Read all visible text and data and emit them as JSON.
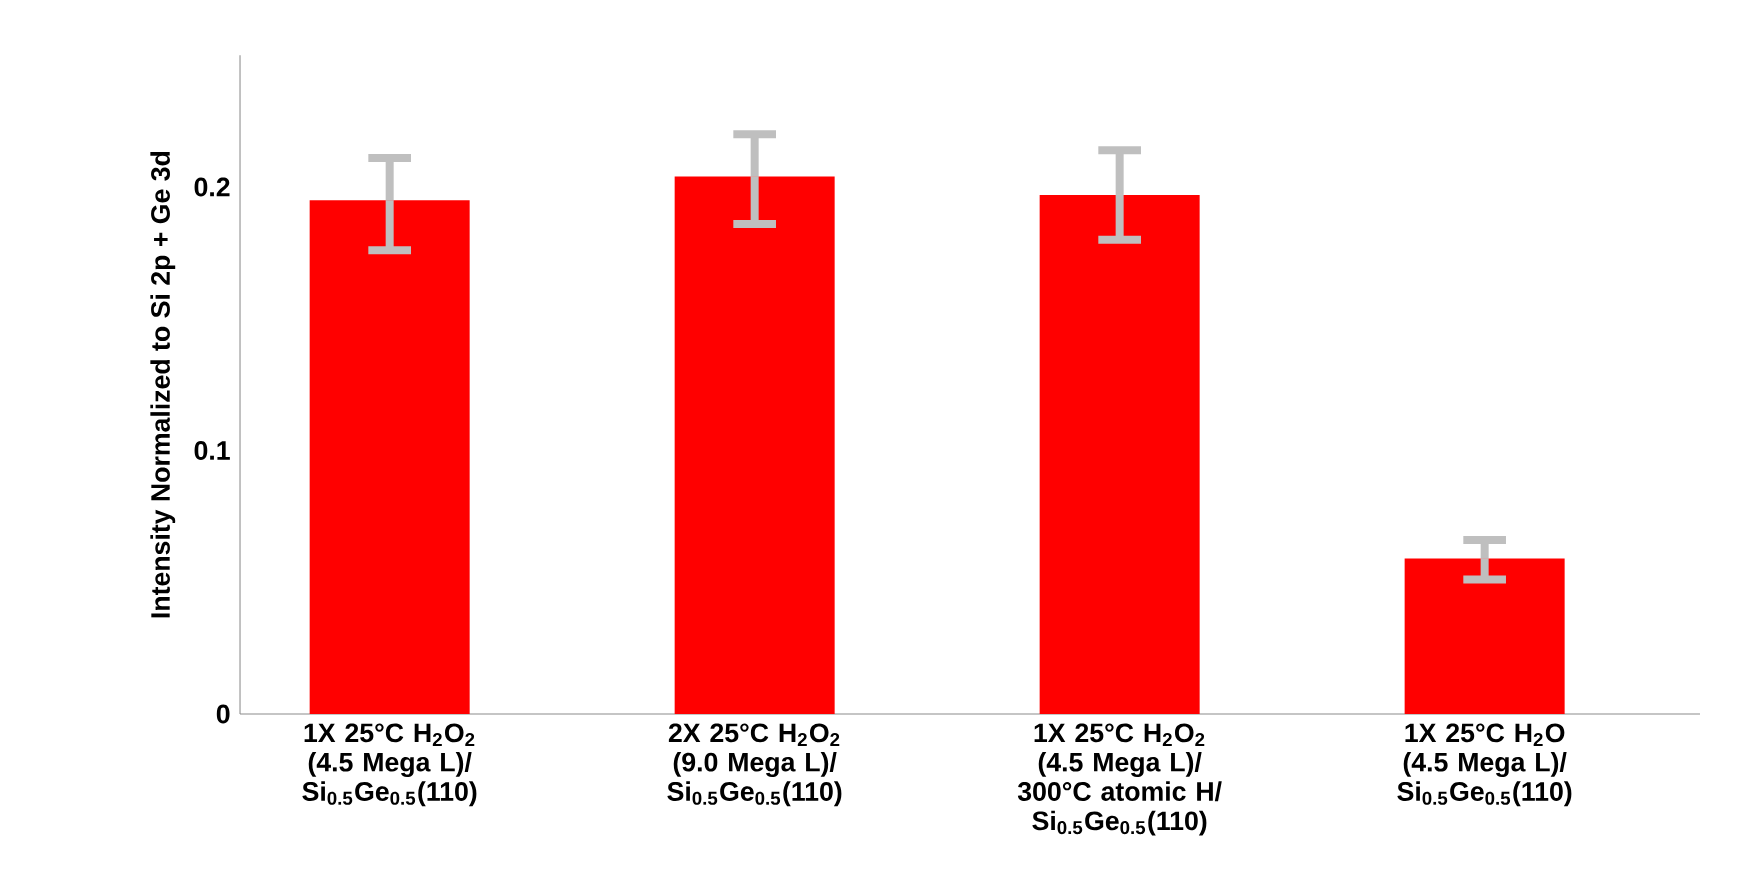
{
  "chart_data": {
    "type": "bar",
    "ylabel": "Intensity Normalized to Si 2p + Ge 3d",
    "categories": [
      "1X 25°C H$_{2}$O$_{2}$ (4.5 Mega L)/ Si$_{0.5}$Ge$_{0.5}$(110)",
      "2X 25°C H$_{2}$O$_{2}$ (9.0 Mega L)/ Si$_{0.5}$Ge$_{0.5}$(110)",
      "1X 25°C H$_{2}$O$_{2}$ (4.5 Mega L)/ 300°C atomic H/ Si$_{0.5}$Ge$_{0.5}$(110)",
      "1X 25°C H$_{2}$O (4.5 Mega L)/ Si$_{0.5}$Ge$_{0.5}$(110)"
    ],
    "values": [
      0.195,
      0.204,
      0.197,
      0.059
    ],
    "errors": [
      [
        0.176,
        0.211
      ],
      [
        0.186,
        0.22
      ],
      [
        0.18,
        0.214
      ],
      [
        0.051,
        0.066
      ]
    ],
    "color": "#ff0000",
    "ylim": [
      0,
      0.25
    ],
    "yticks": [
      0,
      0.1,
      0.2
    ],
    "grid": false
  }
}
